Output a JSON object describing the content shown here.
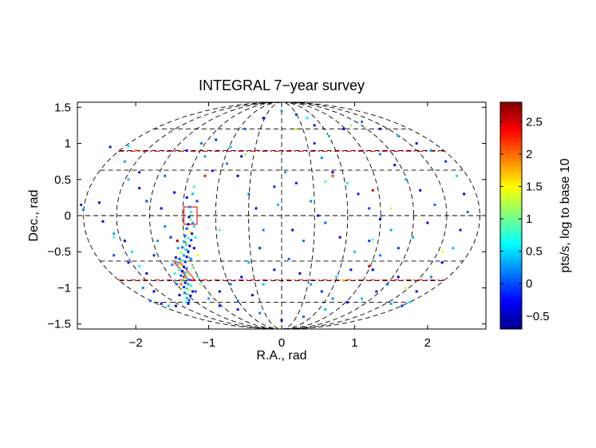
{
  "chart_data": {
    "type": "scatter",
    "title": "INTEGRAL 7−year survey",
    "xlabel": "R.A., rad",
    "ylabel": "Dec., rad",
    "xlim": [
      -2.8,
      2.8
    ],
    "ylim": [
      -1.57,
      1.57
    ],
    "x_ticks": [
      -2,
      -1,
      0,
      1,
      2
    ],
    "x_tick_labels": [
      "−2",
      "−1",
      "0",
      "1",
      "2"
    ],
    "y_ticks": [
      1.5,
      1,
      0.5,
      0,
      -0.5,
      -1,
      -1.5
    ],
    "y_tick_labels": [
      "1.5",
      "1",
      "0.5",
      "0",
      "−0.5",
      "−1",
      "−1.5"
    ],
    "projection": "Mollweide (aitoff-like) all-sky grid",
    "grid_latitudes": [
      1.2,
      0.9,
      0.63,
      0,
      -0.63,
      -0.9,
      -1.2
    ],
    "red_dashdot_latitudes": [
      0.89,
      -0.89
    ],
    "colorbar": {
      "label": "pts/s, log to base 10",
      "range": [
        -0.7,
        2.8
      ],
      "ticks": [
        -0.5,
        0,
        0.5,
        1,
        1.5,
        2,
        2.5
      ],
      "tick_labels": [
        "−0.5",
        "0",
        "0.5",
        "1",
        "1.5",
        "2",
        "2.5"
      ]
    },
    "regions": [
      {
        "name": "square box",
        "center": [
          -1.25,
          0.0
        ],
        "half_width": 0.09,
        "half_height": 0.12
      },
      {
        "name": "rhombus box",
        "points": [
          [
            -1.47,
            -0.65
          ],
          [
            -1.39,
            -0.65
          ],
          [
            -1.18,
            -0.9
          ],
          [
            -1.26,
            -0.9
          ]
        ]
      }
    ],
    "points": [
      [
        -1.26,
        0.12,
        0.2
      ],
      [
        -1.24,
        0.05,
        0.6
      ],
      [
        -1.27,
        -0.02,
        -0.2
      ],
      [
        -1.25,
        -0.06,
        1.1
      ],
      [
        -1.22,
        -0.1,
        0.3
      ],
      [
        -1.28,
        -0.12,
        -0.4
      ],
      [
        -1.2,
        -0.15,
        0.5
      ],
      [
        -1.3,
        -0.18,
        0.0
      ],
      [
        -1.26,
        -0.22,
        1.4
      ],
      [
        -1.23,
        -0.25,
        -0.3
      ],
      [
        -1.32,
        -0.28,
        0.2
      ],
      [
        -1.28,
        -0.31,
        0.8
      ],
      [
        -1.24,
        -0.34,
        -0.1
      ],
      [
        -1.34,
        -0.36,
        0.4
      ],
      [
        -1.3,
        -0.39,
        1.0
      ],
      [
        -1.26,
        -0.42,
        -0.5
      ],
      [
        -1.36,
        -0.44,
        0.1
      ],
      [
        -1.32,
        -0.47,
        0.6
      ],
      [
        -1.28,
        -0.5,
        -0.2
      ],
      [
        -1.38,
        -0.52,
        1.3
      ],
      [
        -1.34,
        -0.55,
        0.3
      ],
      [
        -1.3,
        -0.57,
        -0.4
      ],
      [
        -1.4,
        -0.6,
        0.0
      ],
      [
        -1.36,
        -0.62,
        0.9
      ],
      [
        -1.32,
        -0.64,
        -0.1
      ],
      [
        -1.42,
        -0.67,
        0.5
      ],
      [
        -1.38,
        -0.69,
        1.6
      ],
      [
        -1.34,
        -0.71,
        -0.3
      ],
      [
        -1.3,
        -0.73,
        0.2
      ],
      [
        -1.4,
        -0.75,
        0.7
      ],
      [
        -1.36,
        -0.77,
        -0.5
      ],
      [
        -1.32,
        -0.79,
        0.4
      ],
      [
        -1.28,
        -0.81,
        1.2
      ],
      [
        -1.38,
        -0.83,
        0.0
      ],
      [
        -1.34,
        -0.85,
        -0.2
      ],
      [
        -1.3,
        -0.87,
        0.6
      ],
      [
        -1.26,
        -0.89,
        0.1
      ],
      [
        -1.36,
        -0.91,
        1.0
      ],
      [
        -1.32,
        -0.93,
        -0.4
      ],
      [
        -1.28,
        -0.95,
        0.3
      ],
      [
        -1.24,
        -0.97,
        0.8
      ],
      [
        -1.34,
        -0.99,
        -0.1
      ],
      [
        -1.3,
        -1.01,
        0.5
      ],
      [
        -1.26,
        -1.03,
        1.4
      ],
      [
        -1.22,
        -1.05,
        -0.3
      ],
      [
        -1.33,
        -1.07,
        0.2
      ],
      [
        -1.29,
        -1.09,
        0.9
      ],
      [
        -1.25,
        -1.11,
        -0.5
      ],
      [
        -1.3,
        -1.14,
        0.4
      ],
      [
        -1.27,
        -1.17,
        0.0
      ],
      [
        -1.31,
        -1.2,
        0.7
      ],
      [
        -1.28,
        -1.22,
        -0.2
      ],
      [
        -1.24,
        -0.6,
        0.3
      ],
      [
        -1.22,
        -0.7,
        1.1
      ],
      [
        -1.2,
        -0.45,
        -0.4
      ],
      [
        -1.18,
        -0.3,
        0.6
      ],
      [
        -1.16,
        0.2,
        -0.1
      ],
      [
        -1.22,
        0.3,
        0.4
      ],
      [
        -1.3,
        0.25,
        -0.3
      ],
      [
        -1.2,
        0.4,
        0.9
      ],
      [
        -1.42,
        -0.45,
        0.3
      ],
      [
        -1.45,
        -0.58,
        -0.2
      ],
      [
        -1.46,
        -0.8,
        0.8
      ],
      [
        -1.44,
        -0.95,
        0.1
      ],
      [
        -1.4,
        -1.1,
        -0.4
      ],
      [
        -1.5,
        -0.68,
        0.2
      ],
      [
        -1.52,
        -0.3,
        -0.1
      ],
      [
        -1.15,
        -0.85,
        0.6
      ],
      [
        -1.12,
        -0.95,
        1.2
      ],
      [
        -1.18,
        -1.05,
        0.0
      ],
      [
        -1.47,
        0.32,
        -0.3
      ],
      [
        -1.6,
        0.55,
        0.1
      ],
      [
        -1.95,
        0.6,
        -0.2
      ],
      [
        -2.1,
        0.5,
        0.4
      ],
      [
        -2.5,
        0.18,
        -0.4
      ],
      [
        -2.75,
        0.15,
        -0.1
      ],
      [
        -2.72,
        0.08,
        0.2
      ],
      [
        -2.45,
        -0.08,
        -0.3
      ],
      [
        -2.3,
        -0.25,
        0.3
      ],
      [
        -2.15,
        -0.35,
        -0.4
      ],
      [
        -2.05,
        -0.5,
        0.5
      ],
      [
        -2.3,
        -0.55,
        0.0
      ],
      [
        -2.1,
        -0.65,
        -0.2
      ],
      [
        -1.95,
        -0.7,
        0.6
      ],
      [
        -1.85,
        -0.8,
        -0.3
      ],
      [
        -1.9,
        -1.0,
        0.2
      ],
      [
        -1.75,
        -1.05,
        -0.4
      ],
      [
        -1.8,
        -1.18,
        0.1
      ],
      [
        -1.65,
        -1.22,
        -0.2
      ],
      [
        -1.55,
        -1.25,
        0.4
      ],
      [
        -1.45,
        -1.25,
        -0.5
      ],
      [
        -1.7,
        -0.35,
        0.3
      ],
      [
        -1.75,
        -0.55,
        -0.1
      ],
      [
        -1.6,
        -0.15,
        0.2
      ],
      [
        -1.65,
        0.1,
        -0.3
      ],
      [
        -1.85,
        0.2,
        0.0
      ],
      [
        -1.95,
        0.38,
        -0.4
      ],
      [
        -2.15,
        0.75,
        0.3
      ],
      [
        -2.35,
        0.95,
        -0.2
      ],
      [
        -2.1,
        0.96,
        0.5
      ],
      [
        -1.3,
        0.9,
        -0.3
      ],
      [
        -1.1,
        1.0,
        0.1
      ],
      [
        -0.9,
        1.05,
        -0.1
      ],
      [
        -0.7,
        0.95,
        0.4
      ],
      [
        -0.55,
        0.82,
        -0.4
      ],
      [
        -0.75,
        0.72,
        0.2
      ],
      [
        -0.95,
        0.62,
        -0.2
      ],
      [
        -1.05,
        0.82,
        0.3
      ],
      [
        -0.6,
        0.55,
        -0.5
      ],
      [
        -0.45,
        0.3,
        0.1
      ],
      [
        -0.35,
        0.1,
        -0.3
      ],
      [
        -0.25,
        -0.2,
        0.2
      ],
      [
        -0.3,
        -0.45,
        -0.1
      ],
      [
        -0.45,
        -0.65,
        0.4
      ],
      [
        -0.55,
        -0.85,
        -0.3
      ],
      [
        -0.7,
        -0.95,
        0.1
      ],
      [
        -0.85,
        -1.05,
        -0.4
      ],
      [
        -1.0,
        -1.15,
        0.3
      ],
      [
        -0.85,
        -1.25,
        -0.1
      ],
      [
        -0.6,
        -1.18,
        0.2
      ],
      [
        -0.4,
        -1.1,
        -0.3
      ],
      [
        -0.25,
        -0.95,
        0.4
      ],
      [
        -0.1,
        -0.75,
        -0.2
      ],
      [
        0.1,
        -0.6,
        0.1
      ],
      [
        0.25,
        -0.8,
        -0.4
      ],
      [
        0.4,
        -0.95,
        0.3
      ],
      [
        0.55,
        -1.05,
        -0.1
      ],
      [
        0.7,
        -1.15,
        0.2
      ],
      [
        0.9,
        -1.2,
        -0.3
      ],
      [
        1.1,
        -1.15,
        0.4
      ],
      [
        1.3,
        -1.05,
        -0.2
      ],
      [
        1.45,
        -0.95,
        0.1
      ],
      [
        1.6,
        -0.85,
        -0.4
      ],
      [
        1.75,
        -1.2,
        0.6
      ],
      [
        1.65,
        -1.25,
        -0.1
      ],
      [
        1.5,
        -1.22,
        0.3
      ],
      [
        1.85,
        -1.05,
        -0.3
      ],
      [
        2.05,
        -0.85,
        0.2
      ],
      [
        2.2,
        -0.65,
        -0.4
      ],
      [
        2.35,
        -0.45,
        0.4
      ],
      [
        2.45,
        -0.2,
        -0.2
      ],
      [
        2.55,
        0.05,
        0.1
      ],
      [
        2.5,
        0.3,
        -0.3
      ],
      [
        2.4,
        0.55,
        0.5
      ],
      [
        2.25,
        0.75,
        -0.1
      ],
      [
        2.05,
        0.9,
        0.2
      ],
      [
        1.85,
        1.0,
        -0.4
      ],
      [
        1.6,
        1.1,
        0.3
      ],
      [
        1.35,
        1.2,
        -0.2
      ],
      [
        1.1,
        1.3,
        0.1
      ],
      [
        0.85,
        1.2,
        -0.3
      ],
      [
        0.65,
        1.1,
        0.4
      ],
      [
        0.45,
        1.0,
        -0.1
      ],
      [
        0.55,
        0.8,
        0.2
      ],
      [
        0.7,
        0.6,
        -0.4
      ],
      [
        0.9,
        0.45,
        0.6
      ],
      [
        1.05,
        0.3,
        -0.2
      ],
      [
        1.2,
        0.1,
        0.0
      ],
      [
        1.35,
        -0.05,
        -0.3
      ],
      [
        1.5,
        -0.2,
        0.3
      ],
      [
        1.2,
        -0.35,
        -0.1
      ],
      [
        1.0,
        -0.5,
        0.4
      ],
      [
        0.8,
        -0.3,
        -0.3
      ],
      [
        0.6,
        -0.1,
        0.1
      ],
      [
        0.5,
        0.0,
        -0.4
      ],
      [
        0.4,
        0.2,
        0.2
      ],
      [
        0.2,
        0.45,
        -0.2
      ],
      [
        0.05,
        0.6,
        0.3
      ],
      [
        -0.1,
        0.4,
        -0.1
      ],
      [
        -0.05,
        0.15,
        0.4
      ],
      [
        0.15,
        -0.2,
        -0.3
      ],
      [
        0.3,
        -0.35,
        0.1
      ],
      [
        0.95,
        -0.75,
        -0.2
      ],
      [
        0.75,
        -0.85,
        0.5
      ],
      [
        1.25,
        -0.75,
        -0.4
      ],
      [
        1.35,
        -0.55,
        0.2
      ],
      [
        1.6,
        -0.45,
        -0.1
      ],
      [
        1.8,
        -0.3,
        0.3
      ],
      [
        2.0,
        -0.1,
        -0.3
      ],
      [
        2.1,
        0.15,
        0.1
      ],
      [
        1.9,
        0.35,
        -0.2
      ],
      [
        1.7,
        0.5,
        0.4
      ],
      [
        1.55,
        0.7,
        -0.4
      ],
      [
        1.35,
        0.85,
        0.2
      ],
      [
        0.2,
        1.4,
        -0.1
      ],
      [
        0.0,
        1.45,
        0.3
      ],
      [
        -0.25,
        1.35,
        -0.3
      ],
      [
        0.35,
        1.35,
        0.6
      ],
      [
        0.45,
        1.25,
        -0.2
      ],
      [
        -0.5,
        1.2,
        0.1
      ],
      [
        -0.3,
        -1.35,
        0.2
      ],
      [
        0.0,
        -1.45,
        -0.3
      ],
      [
        0.3,
        -1.4,
        0.1
      ],
      [
        -0.6,
        -1.3,
        -0.2
      ],
      [
        0.6,
        -1.3,
        0.4
      ],
      [
        1.25,
        -0.33,
        1.0
      ],
      [
        1.5,
        0.1,
        1.3
      ],
      [
        0.6,
        0.47,
        0.9
      ],
      [
        -0.85,
        -0.2,
        0.9
      ],
      [
        0.95,
        1.25,
        1.2
      ],
      [
        -0.5,
        0.85,
        1.1
      ],
      [
        2.2,
        -0.5,
        1.5
      ],
      [
        -2.3,
        -0.3,
        0.9
      ],
      [
        1.7,
        -1.0,
        1.4
      ],
      [
        0.2,
        1.2,
        1.6
      ],
      [
        -1.33,
        -0.86,
        1.8
      ],
      [
        -1.43,
        -0.35,
        2.7
      ],
      [
        1.25,
        0.35,
        2.5
      ],
      [
        -1.05,
        0.55,
        2.3
      ],
      [
        0.7,
        0.55,
        2.1
      ],
      [
        -1.38,
        -0.95,
        2.0
      ],
      [
        1.2,
        -0.7,
        2.4
      ],
      [
        -2.0,
        0.9,
        1.9
      ],
      [
        0.85,
        -0.9,
        1.7
      ],
      [
        -1.15,
        -0.55,
        1.5
      ]
    ]
  }
}
